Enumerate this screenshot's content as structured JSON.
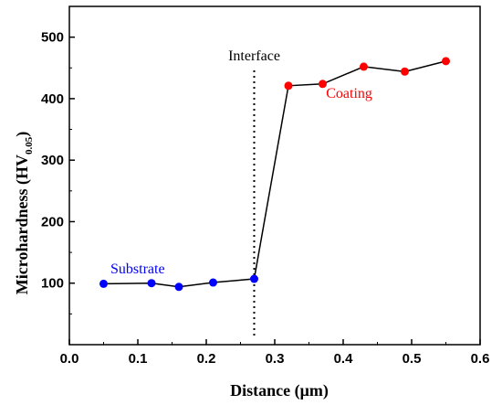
{
  "chart_data": {
    "type": "scatter",
    "xlabel": "Distance (μm)",
    "ylabel_main": "Microhardness (HV",
    "ylabel_sub": "0.05",
    "ylabel_end": ")",
    "xlim": [
      0.0,
      0.6
    ],
    "ylim": [
      0,
      550
    ],
    "x_ticks": [
      0.0,
      0.1,
      0.2,
      0.3,
      0.4,
      0.5,
      0.6
    ],
    "x_tick_labels": [
      "0.0",
      "0.1",
      "0.2",
      "0.3",
      "0.4",
      "0.5",
      "0.6"
    ],
    "y_ticks": [
      100,
      200,
      300,
      400,
      500
    ],
    "y_tick_labels": [
      "100",
      "200",
      "300",
      "400",
      "500"
    ],
    "grid": false,
    "series": [
      {
        "color": "#0000ff",
        "x": [
          0.05,
          0.12,
          0.16,
          0.21,
          0.27
        ],
        "y": [
          99,
          100,
          94,
          101,
          107
        ]
      },
      {
        "color": "#ff0000",
        "x": [
          0.32,
          0.37,
          0.43,
          0.49,
          0.55
        ],
        "y": [
          421,
          424,
          452,
          444,
          461
        ]
      }
    ],
    "line_color": "#000000",
    "interface": {
      "x": 0.27,
      "label": "Interface"
    },
    "annotations": [
      {
        "text": "Substrate",
        "color": "#0000ff",
        "x": 0.06,
        "y": 116
      },
      {
        "text": "Coating",
        "color": "#ff0000",
        "x": 0.375,
        "y": 401
      }
    ]
  }
}
